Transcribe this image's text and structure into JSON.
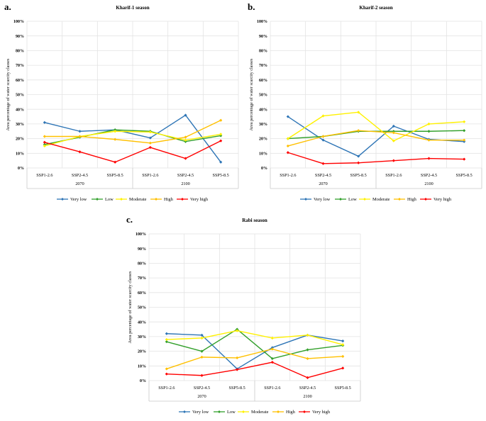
{
  "figure": {
    "background": "#ffffff",
    "text_color": "#000000",
    "gridline_color": "#e3e3e3",
    "axis_line_color": "#c9c9c9",
    "panel_labels": [
      "a.",
      "b.",
      "c."
    ]
  },
  "chart_data": [
    {
      "type": "line",
      "panel_label": "a.",
      "title": "Kharif-1 season",
      "xlabel": "",
      "ylabel": "Area percentage of water scarcity classes",
      "ylim": [
        0,
        100
      ],
      "ytick_step": 10,
      "ytick_suffix": "%",
      "grid": true,
      "legend_position": "bottom",
      "categories": [
        "SSP1-2.6",
        "SSP2-4.5",
        "SSP5-8.5",
        "SSP1-2.6",
        "SSP2-4.5",
        "SSP5-8.5"
      ],
      "group_labels": [
        "2070",
        "2100"
      ],
      "series": [
        {
          "name": "Very low",
          "color": "#2E75B6",
          "values": [
            31,
            25,
            26,
            20.5,
            36,
            4
          ]
        },
        {
          "name": "Low",
          "color": "#33A02C",
          "values": [
            16,
            21,
            26,
            25,
            18,
            22
          ]
        },
        {
          "name": "Moderate",
          "color": "#FFF100",
          "values": [
            15,
            21.5,
            25,
            24.5,
            19,
            23
          ]
        },
        {
          "name": "High",
          "color": "#FFC000",
          "values": [
            21.5,
            21.5,
            19.5,
            17,
            21,
            32.5
          ]
        },
        {
          "name": "Very high",
          "color": "#FF0000",
          "values": [
            17.5,
            11,
            4,
            14,
            6.5,
            18.5
          ]
        }
      ]
    },
    {
      "type": "line",
      "panel_label": "b.",
      "title": "Kharif-2 season",
      "xlabel": "",
      "ylabel": "Area percentage of water scarcity classes",
      "ylim": [
        0,
        100
      ],
      "ytick_step": 10,
      "ytick_suffix": "%",
      "grid": true,
      "legend_position": "bottom",
      "categories": [
        "SSP1-2.6",
        "SSP2-4.5",
        "SSP5-8.5",
        "SSP1-2.6",
        "SSP2-4.5",
        "SSP5-8.5"
      ],
      "group_labels": [
        "2070",
        "2100"
      ],
      "series": [
        {
          "name": "Very low",
          "color": "#2E75B6",
          "values": [
            35,
            19,
            8,
            28.5,
            19.5,
            18
          ]
        },
        {
          "name": "Low",
          "color": "#33A02C",
          "values": [
            20,
            21.5,
            25,
            25,
            25,
            25.5
          ]
        },
        {
          "name": "Moderate",
          "color": "#FFF100",
          "values": [
            20,
            35.5,
            38,
            18.5,
            30,
            31.5
          ]
        },
        {
          "name": "High",
          "color": "#FFC000",
          "values": [
            15,
            21.5,
            25.5,
            24,
            19,
            19
          ]
        },
        {
          "name": "Very high",
          "color": "#FF0000",
          "values": [
            10.5,
            3,
            3.5,
            5,
            6.5,
            6
          ]
        }
      ]
    },
    {
      "type": "line",
      "panel_label": "c.",
      "title": "Rabi season",
      "xlabel": "",
      "ylabel": "Area percentage of water scarcity classes",
      "ylim": [
        0,
        100
      ],
      "ytick_step": 10,
      "ytick_suffix": "%",
      "grid": true,
      "legend_position": "bottom",
      "categories": [
        "SSP1-2.6",
        "SSP2-4.5",
        "SSP5-8.5",
        "SSP1-2.6",
        "SSP2-4.5",
        "SSP5-8.5"
      ],
      "group_labels": [
        "2070",
        "2100"
      ],
      "series": [
        {
          "name": "Very low",
          "color": "#2E75B6",
          "values": [
            32,
            31,
            8,
            22.5,
            31,
            27
          ]
        },
        {
          "name": "Low",
          "color": "#33A02C",
          "values": [
            26.5,
            20,
            35,
            15,
            21,
            24
          ]
        },
        {
          "name": "Moderate",
          "color": "#FFF100",
          "values": [
            28,
            29,
            34,
            29,
            31,
            24.5
          ]
        },
        {
          "name": "High",
          "color": "#FFC000",
          "values": [
            8,
            16,
            15.5,
            21.5,
            15,
            16.5
          ]
        },
        {
          "name": "Very high",
          "color": "#FF0000",
          "values": [
            4.5,
            3.5,
            7.5,
            12.5,
            2,
            8.5
          ]
        }
      ]
    }
  ]
}
